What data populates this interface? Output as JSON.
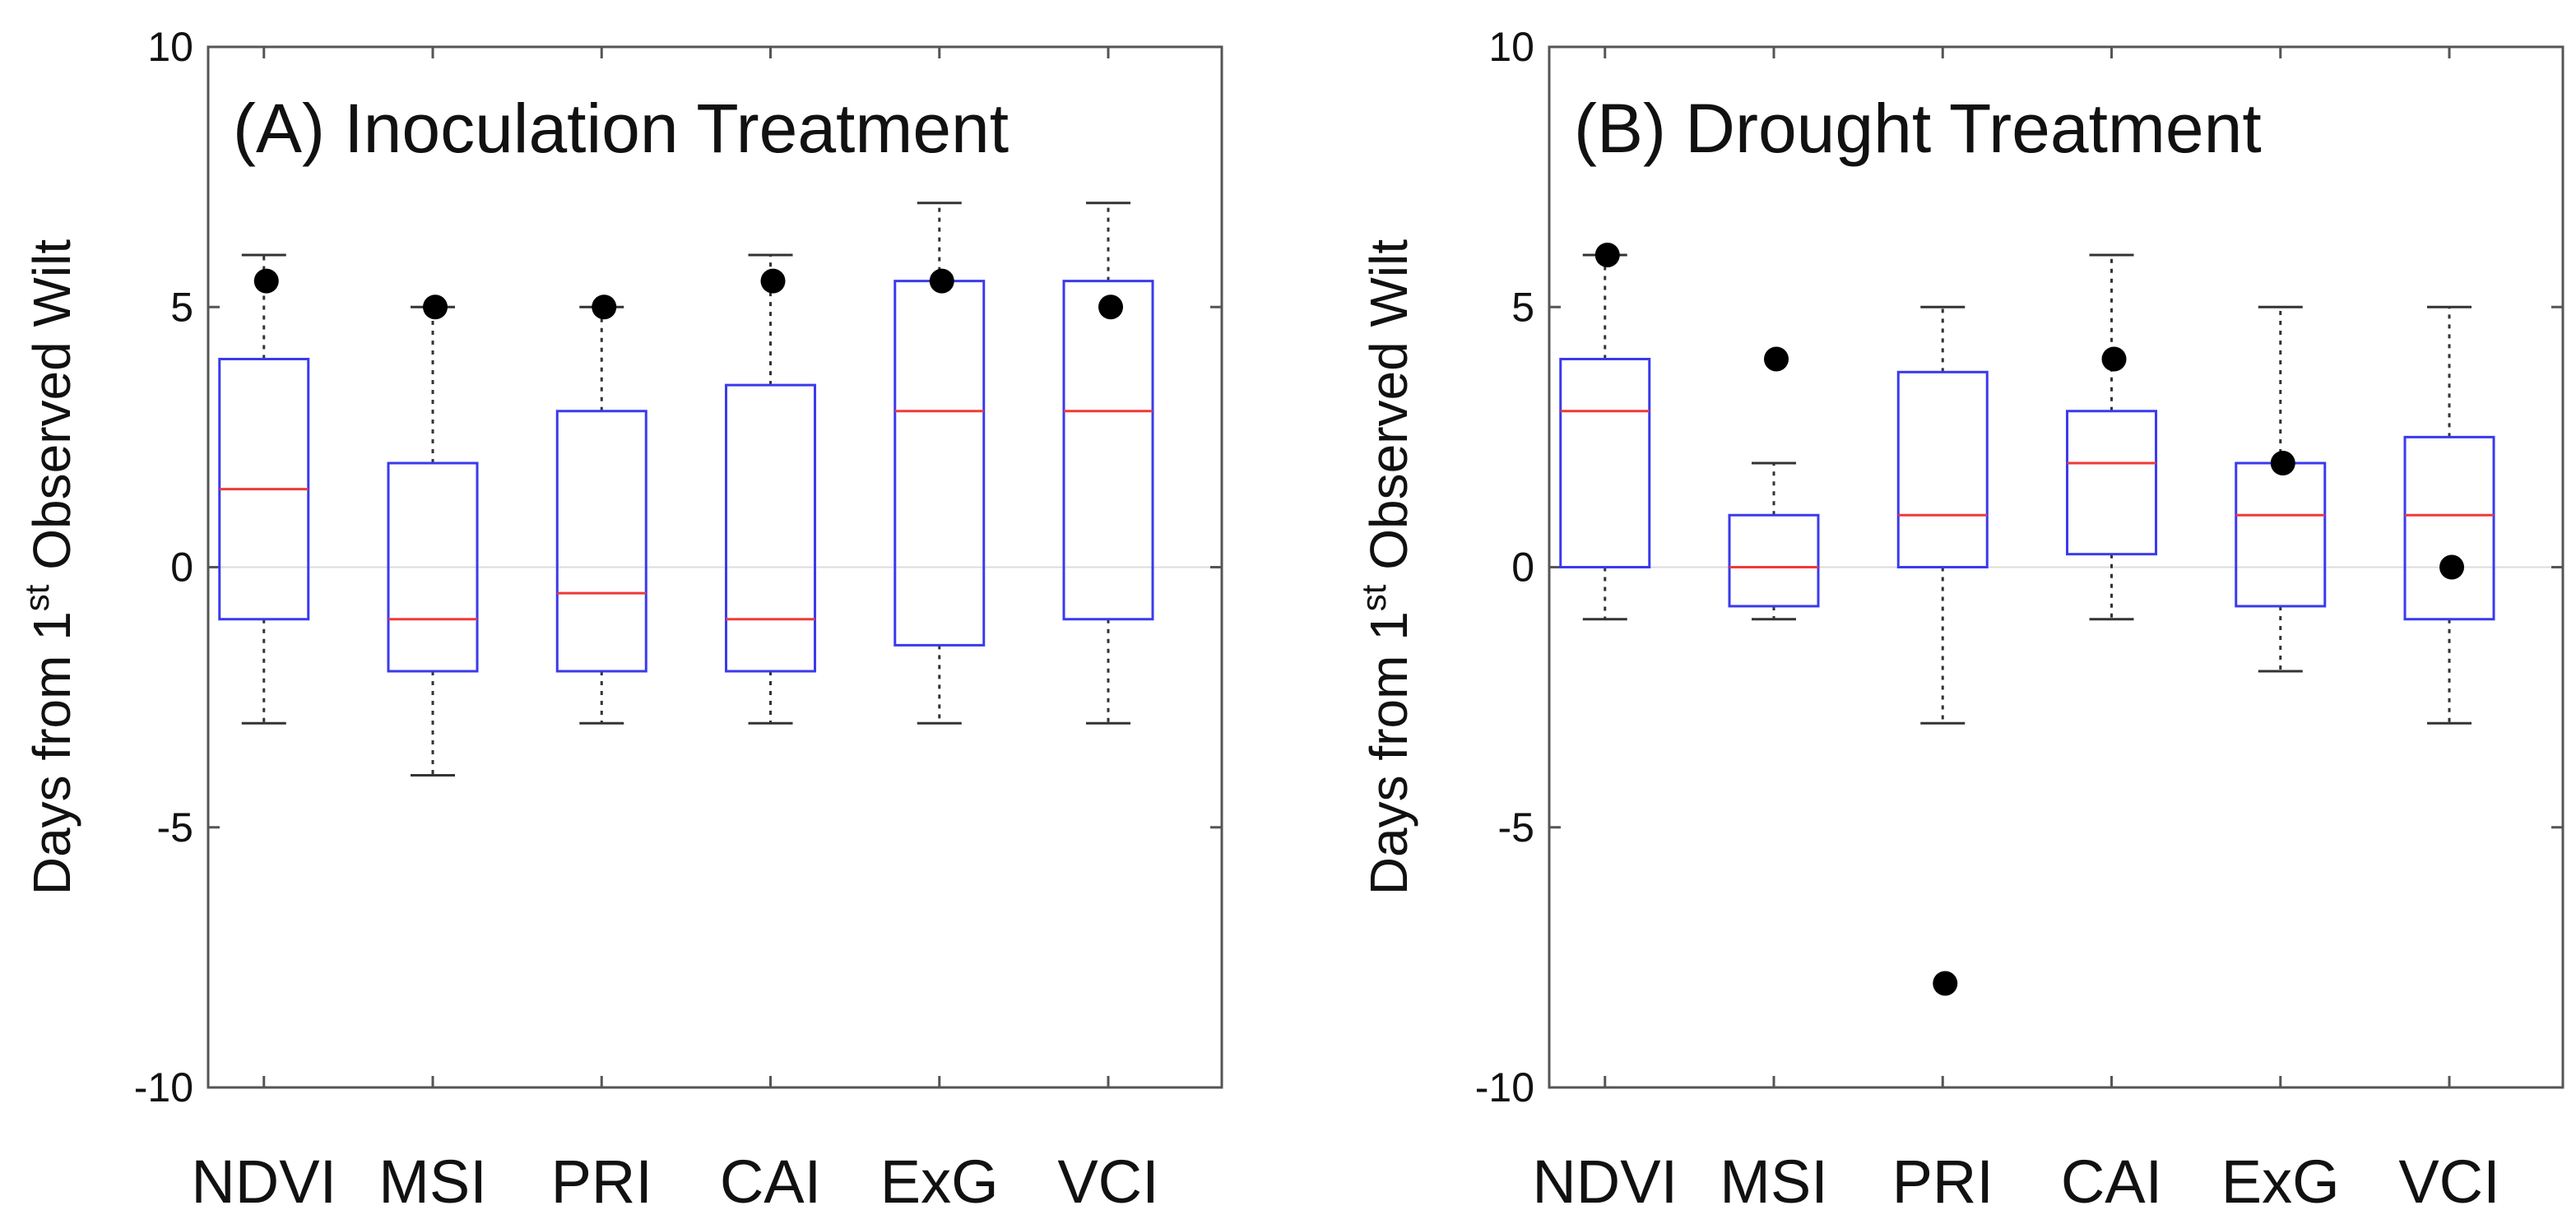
{
  "chart_data": [
    {
      "type": "box",
      "title": "(A) Inoculation Treatment",
      "ylabel": "Days from 1st Observed Wilt",
      "ylabel_parts": {
        "before": "Days from 1",
        "sup": "st",
        "after": " Observed Wilt"
      },
      "xlabel": "",
      "ylim": [
        -10,
        10
      ],
      "yticks": [
        -10,
        -5,
        0,
        5,
        10
      ],
      "categories": [
        "NDVI",
        "MSI",
        "PRI",
        "CAI",
        "ExG",
        "VCI"
      ],
      "boxes": [
        {
          "whisker_low": -3,
          "q1": -1,
          "median": 1.5,
          "q3": 4,
          "whisker_high": 6,
          "point": 5.5
        },
        {
          "whisker_low": -4,
          "q1": -2,
          "median": -1,
          "q3": 2,
          "whisker_high": 5,
          "point": 5
        },
        {
          "whisker_low": -3,
          "q1": -2,
          "median": -0.5,
          "q3": 3,
          "whisker_high": 5,
          "point": 5
        },
        {
          "whisker_low": -3,
          "q1": -2,
          "median": -1,
          "q3": 3.5,
          "whisker_high": 6,
          "point": 5.5
        },
        {
          "whisker_low": -3,
          "q1": -1.5,
          "median": 3,
          "q3": 5.5,
          "whisker_high": 7,
          "point": 5.5
        },
        {
          "whisker_low": -3,
          "q1": -1,
          "median": 3,
          "q3": 5.5,
          "whisker_high": 7,
          "point": 5
        }
      ]
    },
    {
      "type": "box",
      "title": "(B) Drought Treatment",
      "ylabel": "Days from 1st Observed Wilt",
      "ylabel_parts": {
        "before": "Days from 1",
        "sup": "st",
        "after": " Observed Wilt"
      },
      "xlabel": "",
      "ylim": [
        -10,
        10
      ],
      "yticks": [
        -10,
        -5,
        0,
        5,
        10
      ],
      "categories": [
        "NDVI",
        "MSI",
        "PRI",
        "CAI",
        "ExG",
        "VCI"
      ],
      "boxes": [
        {
          "whisker_low": -1,
          "q1": 0,
          "median": 3,
          "q3": 4,
          "whisker_high": 6,
          "point": 6
        },
        {
          "whisker_low": -1,
          "q1": -0.75,
          "median": 0,
          "q3": 1,
          "whisker_high": 2,
          "point": 4
        },
        {
          "whisker_low": -3,
          "q1": 0,
          "median": 1,
          "q3": 3.75,
          "whisker_high": 5,
          "point": -8
        },
        {
          "whisker_low": -1,
          "q1": 0.25,
          "median": 2,
          "q3": 3,
          "whisker_high": 6,
          "point": 4
        },
        {
          "whisker_low": -2,
          "q1": -0.75,
          "median": 1,
          "q3": 2,
          "whisker_high": 5,
          "point": 2
        },
        {
          "whisker_low": -3,
          "q1": -1,
          "median": 1,
          "q3": 2.5,
          "whisker_high": 5,
          "point": 0
        }
      ]
    }
  ],
  "colors": {
    "box": "#3a3aee",
    "median": "#ee3a3a",
    "whisker": "#333333",
    "point": "#000000",
    "frame": "#555555",
    "zero_line": "#dcdcdc"
  }
}
